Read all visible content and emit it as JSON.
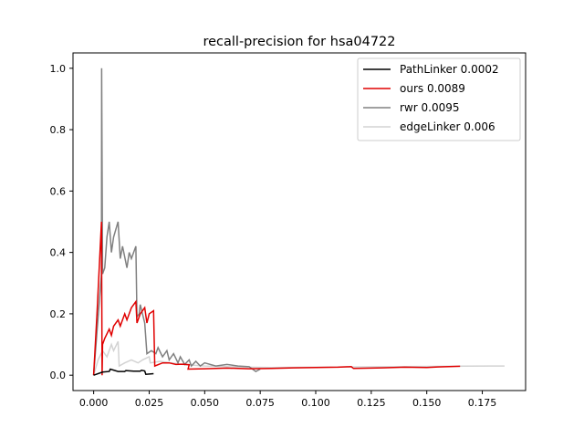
{
  "chart_data": {
    "type": "line",
    "title": "recall-precision for hsa04722",
    "xlabel": "",
    "ylabel": "",
    "xlim": [
      -0.0093,
      0.1945
    ],
    "ylim": [
      -0.05,
      1.05
    ],
    "x_ticks": [
      0.0,
      0.025,
      0.05,
      0.075,
      0.1,
      0.125,
      0.15,
      0.175
    ],
    "x_tick_labels": [
      "0.000",
      "0.025",
      "0.050",
      "0.075",
      "0.100",
      "0.125",
      "0.150",
      "0.175"
    ],
    "y_ticks": [
      0.0,
      0.2,
      0.4,
      0.6,
      0.8,
      1.0
    ],
    "y_tick_labels": [
      "0.0",
      "0.2",
      "0.4",
      "0.6",
      "0.8",
      "1.0"
    ],
    "grid": false,
    "legend_position": "top-right",
    "series": [
      {
        "name": "PathLinker 0.0002",
        "color": "#000000",
        "x": [
          0.0,
          0.004,
          0.007,
          0.0075,
          0.011,
          0.014,
          0.0145,
          0.018,
          0.021,
          0.0215,
          0.023,
          0.0235,
          0.027
        ],
        "y": [
          0.0,
          0.01,
          0.012,
          0.02,
          0.012,
          0.012,
          0.015,
          0.013,
          0.013,
          0.016,
          0.014,
          0.003,
          0.005
        ]
      },
      {
        "name": "ours 0.0089",
        "color": "#e00000",
        "x": [
          0.0,
          0.0015,
          0.0035,
          0.0038,
          0.004,
          0.005,
          0.007,
          0.008,
          0.009,
          0.011,
          0.012,
          0.014,
          0.015,
          0.017,
          0.019,
          0.0195,
          0.021,
          0.023,
          0.024,
          0.025,
          0.027,
          0.0275,
          0.031,
          0.034,
          0.037,
          0.04,
          0.043,
          0.0425,
          0.05,
          0.06,
          0.07,
          0.08,
          0.09,
          0.1,
          0.11,
          0.116,
          0.117,
          0.13,
          0.14,
          0.15,
          0.155,
          0.16,
          0.165
        ],
        "y": [
          0.0,
          0.2,
          0.5,
          0.0,
          0.1,
          0.12,
          0.15,
          0.13,
          0.16,
          0.18,
          0.16,
          0.2,
          0.18,
          0.22,
          0.24,
          0.17,
          0.2,
          0.22,
          0.17,
          0.2,
          0.21,
          0.03,
          0.04,
          0.04,
          0.035,
          0.036,
          0.034,
          0.02,
          0.021,
          0.023,
          0.021,
          0.022,
          0.024,
          0.025,
          0.026,
          0.028,
          0.022,
          0.024,
          0.026,
          0.025,
          0.027,
          0.028,
          0.029
        ]
      },
      {
        "name": "rwr 0.0095",
        "color": "#808080",
        "x": [
          0.0,
          0.0035,
          0.0036,
          0.004,
          0.005,
          0.006,
          0.007,
          0.008,
          0.009,
          0.011,
          0.012,
          0.013,
          0.015,
          0.016,
          0.017,
          0.019,
          0.0195,
          0.0205,
          0.021,
          0.023,
          0.024,
          0.026,
          0.028,
          0.029,
          0.031,
          0.033,
          0.034,
          0.036,
          0.038,
          0.039,
          0.041,
          0.043,
          0.044,
          0.046,
          0.048,
          0.05,
          0.055,
          0.06,
          0.065,
          0.07,
          0.073,
          0.075
        ],
        "y": [
          0.0,
          0.33,
          1.0,
          0.33,
          0.35,
          0.45,
          0.5,
          0.4,
          0.45,
          0.5,
          0.38,
          0.42,
          0.35,
          0.4,
          0.38,
          0.42,
          0.19,
          0.2,
          0.23,
          0.17,
          0.07,
          0.08,
          0.07,
          0.09,
          0.06,
          0.08,
          0.05,
          0.07,
          0.04,
          0.06,
          0.035,
          0.05,
          0.03,
          0.045,
          0.03,
          0.04,
          0.03,
          0.035,
          0.03,
          0.028,
          0.012,
          0.02
        ]
      },
      {
        "name": "edgeLinker 0.006",
        "color": "#d3d3d3",
        "x": [
          0.0,
          0.002,
          0.004,
          0.006,
          0.008,
          0.009,
          0.011,
          0.0115,
          0.014,
          0.017,
          0.02,
          0.022,
          0.025,
          0.0255,
          0.03,
          0.035,
          0.04,
          0.05,
          0.06,
          0.07,
          0.08,
          0.1,
          0.12,
          0.14,
          0.16,
          0.18,
          0.185
        ],
        "y": [
          0.0,
          0.05,
          0.08,
          0.06,
          0.1,
          0.08,
          0.11,
          0.03,
          0.04,
          0.05,
          0.04,
          0.05,
          0.06,
          0.04,
          0.045,
          0.04,
          0.035,
          0.03,
          0.028,
          0.026,
          0.025,
          0.026,
          0.027,
          0.028,
          0.029,
          0.03,
          0.03
        ]
      }
    ]
  }
}
